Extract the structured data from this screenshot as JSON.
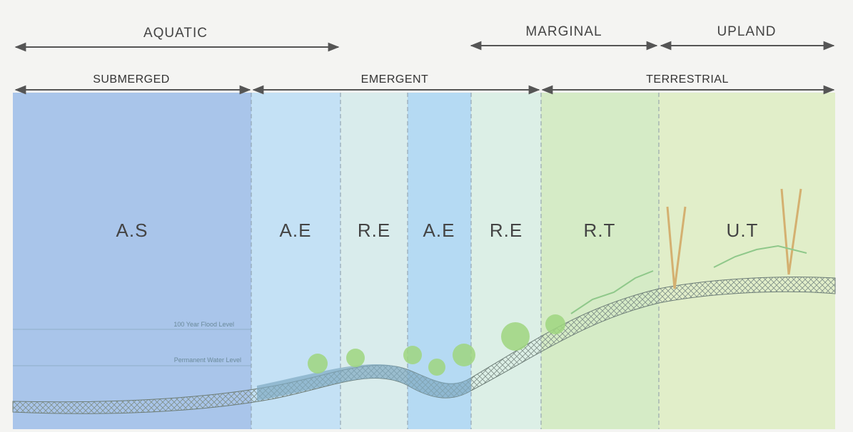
{
  "header": {
    "top": [
      "AQUATIC",
      "MARGINAL",
      "UPLAND"
    ],
    "sub": [
      "SUBMERGED",
      "EMERGENT",
      "TERRESTRIAL"
    ]
  },
  "zones": [
    "A.S",
    "A.E",
    "R.E",
    "A.E",
    "R.E",
    "R.T",
    "U.T"
  ],
  "levels": {
    "flood": "100 Year Flood Level",
    "water": "Permanent Water Level"
  }
}
